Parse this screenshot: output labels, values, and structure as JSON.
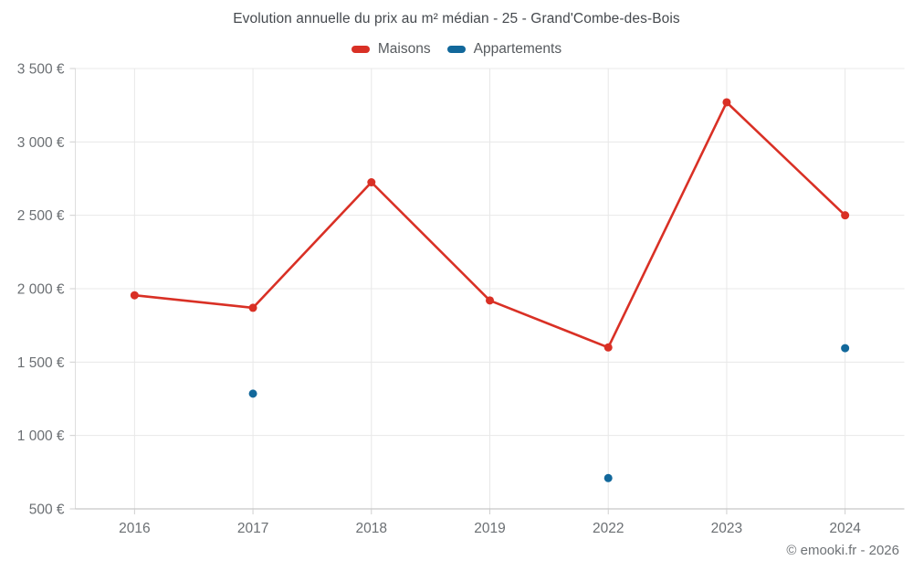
{
  "header": {
    "title": "Evolution annuelle du prix au m² médian - 25 - Grand'Combe-des-Bois"
  },
  "legend": {
    "items": [
      {
        "label": "Maisons",
        "color": "#d93025"
      },
      {
        "label": "Appartements",
        "color": "#12689b"
      }
    ]
  },
  "footer": {
    "attribution": "© emooki.fr - 2026"
  },
  "chart_data": {
    "type": "line",
    "title": "Evolution annuelle du prix au m² médian - 25 - Grand'Combe-des-Bois",
    "categories": [
      "2016",
      "2017",
      "2018",
      "2019",
      "2022",
      "2023",
      "2024"
    ],
    "series": [
      {
        "name": "Maisons",
        "color": "#d93025",
        "values": [
          1955,
          1870,
          2725,
          1920,
          1600,
          3270,
          2500
        ],
        "point_radius": 4.5,
        "line_width": 2.6
      },
      {
        "name": "Appartements",
        "color": "#12689b",
        "values": [
          null,
          1285,
          null,
          null,
          710,
          null,
          1595
        ],
        "point_radius": 4.5,
        "line_width": 2.6
      }
    ],
    "xlabel": "",
    "ylabel": "",
    "ylim": [
      500,
      3500
    ],
    "yticks": [
      500,
      1000,
      1500,
      2000,
      2500,
      3000,
      3500
    ],
    "ytick_labels": [
      "500 €",
      "1 000 €",
      "1 500 €",
      "2 000 €",
      "2 500 €",
      "3 000 €",
      "3 500 €"
    ],
    "grid": true,
    "legend_position": "top",
    "grid_color": "#e8e8e8",
    "y_axis_line_color": "#dedede",
    "x_axis_line_color": "#b9b9b9",
    "tick_mark_color": "#cfcfcf",
    "tick_label_color": "#6b6f73"
  }
}
